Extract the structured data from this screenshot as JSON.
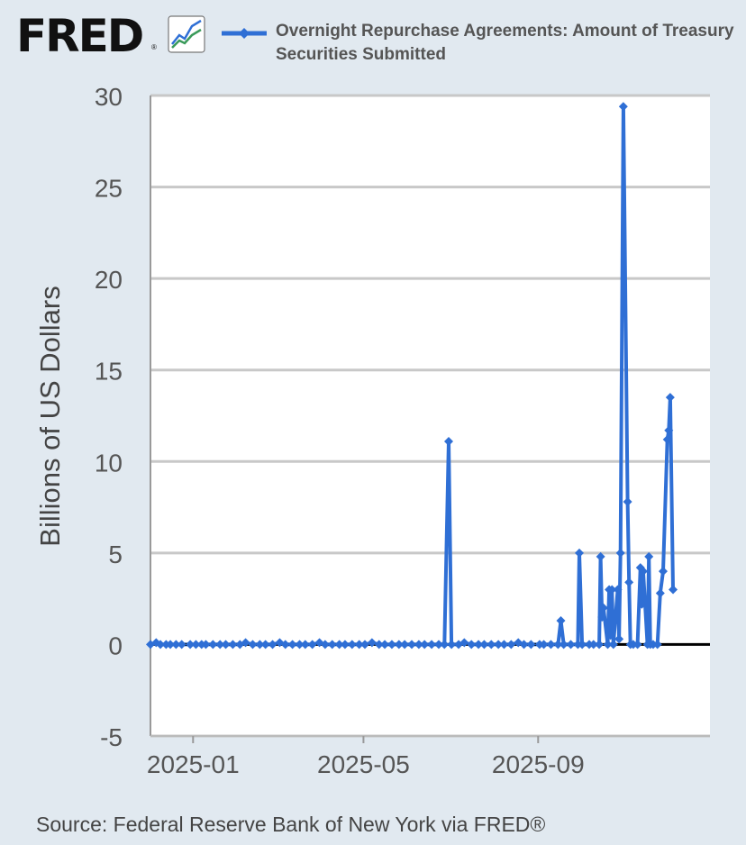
{
  "header": {
    "logo_text": "FRED",
    "logo_registered": "®",
    "logo_icon": "line-chart-icon"
  },
  "legend": {
    "series_label": "Overnight Repurchase Agreements: Amount of Treasury Securities Submitted"
  },
  "source": "Source: Federal Reserve Bank of New York via FRED®",
  "colors": {
    "series": "#2f6fd5",
    "grid": "#c8c8c8",
    "zero_line": "#000000",
    "background": "#e1e9f0",
    "plot_bg": "#ffffff"
  },
  "chart_data": {
    "type": "line",
    "ylabel": "Billions of US Dollars",
    "ylim": [
      -5,
      30
    ],
    "yticks": [
      "30",
      "25",
      "20",
      "15",
      "10",
      "5",
      "0",
      "-5"
    ],
    "xticks": [
      "2025-01",
      "2025-05",
      "2025-09"
    ],
    "xlim": [
      "2024-12-02",
      "2025-12-31"
    ],
    "grid": true,
    "legend_position": "top",
    "series": [
      {
        "name": "Overnight Repurchase Agreements: Amount of Treasury Securities Submitted",
        "marker": "diamond",
        "points": [
          [
            "2024-12-02",
            0
          ],
          [
            "2024-12-06",
            0.1
          ],
          [
            "2024-12-09",
            0
          ],
          [
            "2024-12-13",
            0
          ],
          [
            "2024-12-16",
            0
          ],
          [
            "2024-12-20",
            0
          ],
          [
            "2024-12-24",
            0
          ],
          [
            "2024-12-30",
            0
          ],
          [
            "2025-01-03",
            0
          ],
          [
            "2025-01-07",
            0
          ],
          [
            "2025-01-10",
            0
          ],
          [
            "2025-01-15",
            0
          ],
          [
            "2025-01-20",
            0
          ],
          [
            "2025-01-24",
            0
          ],
          [
            "2025-01-29",
            0
          ],
          [
            "2025-02-03",
            0
          ],
          [
            "2025-02-07",
            0.1
          ],
          [
            "2025-02-12",
            0
          ],
          [
            "2025-02-17",
            0
          ],
          [
            "2025-02-21",
            0
          ],
          [
            "2025-02-26",
            0
          ],
          [
            "2025-03-03",
            0.1
          ],
          [
            "2025-03-07",
            0
          ],
          [
            "2025-03-12",
            0
          ],
          [
            "2025-03-17",
            0
          ],
          [
            "2025-03-21",
            0
          ],
          [
            "2025-03-26",
            0
          ],
          [
            "2025-03-31",
            0.1
          ],
          [
            "2025-04-04",
            0
          ],
          [
            "2025-04-09",
            0
          ],
          [
            "2025-04-14",
            0
          ],
          [
            "2025-04-18",
            0
          ],
          [
            "2025-04-23",
            0
          ],
          [
            "2025-04-28",
            0
          ],
          [
            "2025-05-02",
            0
          ],
          [
            "2025-05-07",
            0.1
          ],
          [
            "2025-05-12",
            0
          ],
          [
            "2025-05-16",
            0
          ],
          [
            "2025-05-21",
            0
          ],
          [
            "2025-05-26",
            0
          ],
          [
            "2025-05-30",
            0
          ],
          [
            "2025-06-04",
            0
          ],
          [
            "2025-06-09",
            0
          ],
          [
            "2025-06-13",
            0
          ],
          [
            "2025-06-18",
            0
          ],
          [
            "2025-06-23",
            0
          ],
          [
            "2025-06-27",
            0
          ],
          [
            "2025-06-30",
            11.1
          ],
          [
            "2025-07-02",
            0
          ],
          [
            "2025-07-07",
            0
          ],
          [
            "2025-07-11",
            0.1
          ],
          [
            "2025-07-16",
            0
          ],
          [
            "2025-07-21",
            0
          ],
          [
            "2025-07-25",
            0
          ],
          [
            "2025-07-30",
            0
          ],
          [
            "2025-08-04",
            0
          ],
          [
            "2025-08-08",
            0
          ],
          [
            "2025-08-13",
            0
          ],
          [
            "2025-08-18",
            0.1
          ],
          [
            "2025-08-22",
            0
          ],
          [
            "2025-08-27",
            0
          ],
          [
            "2025-09-02",
            0
          ],
          [
            "2025-09-05",
            0
          ],
          [
            "2025-09-10",
            0
          ],
          [
            "2025-09-15",
            0
          ],
          [
            "2025-09-17",
            1.3
          ],
          [
            "2025-09-19",
            0
          ],
          [
            "2025-09-24",
            0
          ],
          [
            "2025-09-29",
            0
          ],
          [
            "2025-09-30",
            5.0
          ],
          [
            "2025-10-02",
            0
          ],
          [
            "2025-10-07",
            0
          ],
          [
            "2025-10-10",
            0
          ],
          [
            "2025-10-14",
            0
          ],
          [
            "2025-10-15",
            4.8
          ],
          [
            "2025-10-16",
            1.5
          ],
          [
            "2025-10-17",
            2.0
          ],
          [
            "2025-10-20",
            0
          ],
          [
            "2025-10-21",
            3.0
          ],
          [
            "2025-10-22",
            0.5
          ],
          [
            "2025-10-23",
            3.0
          ],
          [
            "2025-10-24",
            0
          ],
          [
            "2025-10-27",
            3.0
          ],
          [
            "2025-10-28",
            0.3
          ],
          [
            "2025-10-29",
            5.0
          ],
          [
            "2025-10-31",
            29.4
          ],
          [
            "2025-11-03",
            7.8
          ],
          [
            "2025-11-04",
            3.4
          ],
          [
            "2025-11-05",
            0
          ],
          [
            "2025-11-07",
            0
          ],
          [
            "2025-11-10",
            0
          ],
          [
            "2025-11-12",
            4.2
          ],
          [
            "2025-11-13",
            2.2
          ],
          [
            "2025-11-14",
            4.0
          ],
          [
            "2025-11-17",
            0
          ],
          [
            "2025-11-18",
            4.8
          ],
          [
            "2025-11-19",
            0
          ],
          [
            "2025-11-21",
            0
          ],
          [
            "2025-11-24",
            0
          ],
          [
            "2025-11-26",
            2.8
          ],
          [
            "2025-11-28",
            4.0
          ],
          [
            "2025-12-01",
            11.2
          ],
          [
            "2025-12-02",
            11.7
          ],
          [
            "2025-12-03",
            13.5
          ],
          [
            "2025-12-05",
            3.0
          ]
        ]
      }
    ]
  }
}
